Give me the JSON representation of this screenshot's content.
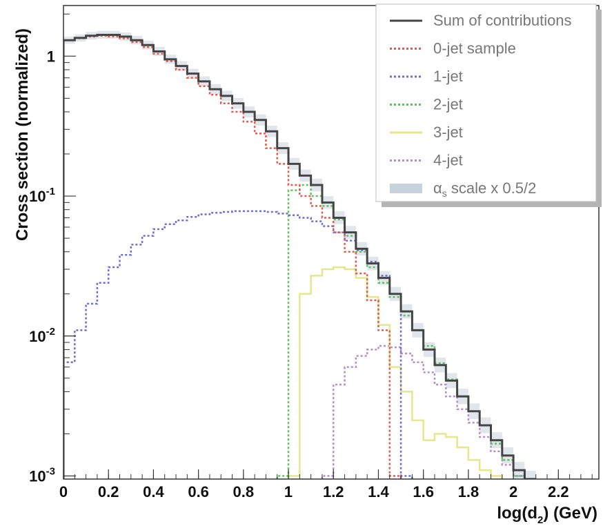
{
  "chart_data": {
    "type": "line",
    "drawstyle": "steps",
    "xlabel": "log(d",
    "xlabel_sub": "2",
    "xlabel_tail": ") (GeV)",
    "ylabel": "Cross section (normalized)",
    "xlim": [
      0,
      2.38
    ],
    "ylim": [
      0.00095,
      2.3
    ],
    "yscale": "log",
    "grid": false,
    "legend_placement": "top-right",
    "x_ticks": [
      {
        "v": 0,
        "label": "0"
      },
      {
        "v": 0.2,
        "label": "0.2"
      },
      {
        "v": 0.4,
        "label": "0.4"
      },
      {
        "v": 0.6,
        "label": "0.6"
      },
      {
        "v": 0.8,
        "label": "0.8"
      },
      {
        "v": 1.0,
        "label": "1"
      },
      {
        "v": 1.2,
        "label": "1.2"
      },
      {
        "v": 1.4,
        "label": "1.4"
      },
      {
        "v": 1.6,
        "label": "1.6"
      },
      {
        "v": 1.8,
        "label": "1.8"
      },
      {
        "v": 2.0,
        "label": "2"
      },
      {
        "v": 2.2,
        "label": "2.2"
      }
    ],
    "y_ticks": [
      {
        "v": 0.001,
        "base": "10",
        "exp": "-3"
      },
      {
        "v": 0.01,
        "base": "10",
        "exp": "-2"
      },
      {
        "v": 0.1,
        "base": "10",
        "exp": "-1"
      },
      {
        "v": 1,
        "base": "1",
        "exp": ""
      }
    ],
    "series": [
      {
        "name": "Sum of contributions",
        "color": "#444444",
        "style": "solid",
        "x": [
          0.0,
          0.05,
          0.1,
          0.15,
          0.2,
          0.25,
          0.3,
          0.35,
          0.4,
          0.45,
          0.5,
          0.55,
          0.6,
          0.65,
          0.7,
          0.75,
          0.8,
          0.85,
          0.9,
          0.95,
          1.0,
          1.05,
          1.1,
          1.15,
          1.2,
          1.25,
          1.3,
          1.35,
          1.4,
          1.45,
          1.5,
          1.55,
          1.6,
          1.65,
          1.7,
          1.75,
          1.8,
          1.85,
          1.9,
          1.95,
          2.0,
          2.05
        ],
        "y": [
          1.3,
          1.35,
          1.4,
          1.42,
          1.42,
          1.38,
          1.3,
          1.2,
          1.08,
          0.95,
          0.85,
          0.75,
          0.66,
          0.58,
          0.52,
          0.46,
          0.4,
          0.35,
          0.29,
          0.22,
          0.17,
          0.14,
          0.12,
          0.09,
          0.07,
          0.055,
          0.042,
          0.033,
          0.026,
          0.02,
          0.015,
          0.011,
          0.008,
          0.0062,
          0.0048,
          0.0037,
          0.0029,
          0.0023,
          0.0018,
          0.0014,
          0.0011,
          0.00095
        ]
      },
      {
        "name": "0-jet sample",
        "color": "#e25a4c",
        "style": "dotted",
        "x": [
          0.0,
          0.05,
          0.1,
          0.15,
          0.2,
          0.25,
          0.3,
          0.35,
          0.4,
          0.45,
          0.5,
          0.55,
          0.6,
          0.65,
          0.7,
          0.75,
          0.8,
          0.85,
          0.9,
          0.95,
          1.0,
          1.05,
          1.1,
          1.15,
          1.2,
          1.25,
          1.3,
          1.35,
          1.4,
          1.45
        ],
        "y": [
          1.3,
          1.34,
          1.38,
          1.4,
          1.38,
          1.34,
          1.26,
          1.16,
          1.04,
          0.92,
          0.8,
          0.7,
          0.61,
          0.53,
          0.46,
          0.4,
          0.34,
          0.28,
          0.22,
          0.17,
          0.12,
          0.1,
          0.085,
          0.07,
          0.055,
          0.04,
          0.028,
          0.018,
          0.011,
          0.001
        ]
      },
      {
        "name": "1-jet",
        "color": "#6d6dd2",
        "style": "dotted",
        "x": [
          0.0,
          0.05,
          0.1,
          0.15,
          0.2,
          0.25,
          0.3,
          0.35,
          0.4,
          0.45,
          0.5,
          0.55,
          0.6,
          0.65,
          0.7,
          0.75,
          0.8,
          0.85,
          0.9,
          0.95,
          1.0,
          1.05,
          1.1,
          1.15,
          1.2,
          1.25,
          1.3,
          1.35,
          1.4,
          1.45,
          1.5
        ],
        "y": [
          0.0065,
          0.011,
          0.017,
          0.024,
          0.031,
          0.038,
          0.045,
          0.052,
          0.058,
          0.063,
          0.067,
          0.071,
          0.074,
          0.076,
          0.077,
          0.078,
          0.078,
          0.078,
          0.077,
          0.075,
          0.073,
          0.07,
          0.066,
          0.061,
          0.055,
          0.048,
          0.041,
          0.034,
          0.027,
          0.02,
          0.001
        ]
      },
      {
        "name": "2-jet",
        "color": "#5cc25c",
        "style": "dotted",
        "x": [
          0.95,
          1.0,
          1.05,
          1.1,
          1.15,
          1.2,
          1.25,
          1.3,
          1.35,
          1.4,
          1.45,
          1.5,
          1.55,
          1.6,
          1.65,
          1.7,
          1.75,
          1.8,
          1.85,
          1.9,
          1.95,
          2.0
        ],
        "y": [
          0.001,
          0.11,
          0.12,
          0.1,
          0.085,
          0.068,
          0.052,
          0.04,
          0.031,
          0.024,
          0.019,
          0.014,
          0.011,
          0.0085,
          0.0064,
          0.0049,
          0.0037,
          0.0029,
          0.0023,
          0.0017,
          0.0013,
          0.001
        ]
      },
      {
        "name": "3-jet",
        "color": "#e6e68c",
        "style": "solid",
        "x": [
          1.0,
          1.05,
          1.1,
          1.15,
          1.2,
          1.25,
          1.3,
          1.35,
          1.4,
          1.45,
          1.5,
          1.55,
          1.6,
          1.65,
          1.7,
          1.75,
          1.8,
          1.85,
          1.9
        ],
        "y": [
          0.001,
          0.02,
          0.027,
          0.03,
          0.031,
          0.03,
          0.026,
          0.019,
          0.012,
          0.006,
          0.004,
          0.0025,
          0.0018,
          0.002,
          0.0019,
          0.0016,
          0.0013,
          0.0011,
          0.001
        ]
      },
      {
        "name": "4-jet",
        "color": "#b48ccd",
        "style": "dotted",
        "x": [
          1.15,
          1.2,
          1.25,
          1.3,
          1.35,
          1.4,
          1.45,
          1.5,
          1.55,
          1.6,
          1.65,
          1.7,
          1.75,
          1.8,
          1.85,
          1.9,
          1.95,
          2.0
        ],
        "y": [
          0.001,
          0.0045,
          0.006,
          0.0072,
          0.008,
          0.0085,
          0.0083,
          0.0075,
          0.0065,
          0.0055,
          0.0045,
          0.0037,
          0.003,
          0.0024,
          0.0019,
          0.0015,
          0.0012,
          0.001
        ]
      },
      {
        "name": "αs scale x 0.5/2",
        "color": "#c8d2dc",
        "style": "band",
        "legend_main": "α",
        "legend_sub": "s",
        "legend_tail": " scale x 0.5/2"
      }
    ]
  }
}
